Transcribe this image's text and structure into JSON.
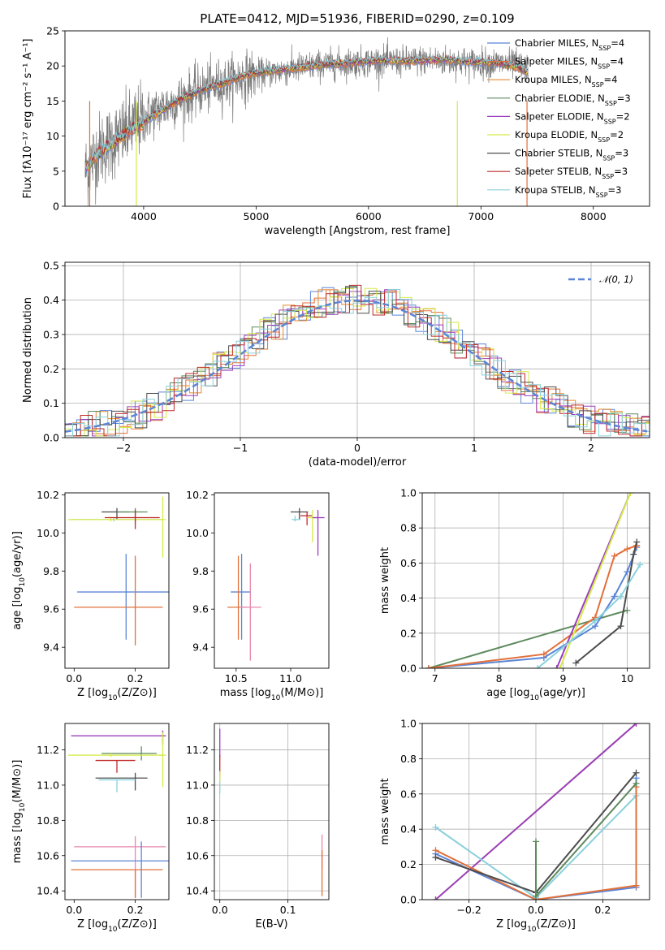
{
  "figure_title": "PLATE=0412, MJD=51936, FIBERID=0290, z=0.109",
  "colors": {
    "chabrier_miles": "#5b85d6",
    "salpeter_miles": "#e2703a",
    "kroupa_miles": "#e88a2e",
    "chabrier_elodie": "#5e8a5e",
    "salpeter_elodie": "#9b3fbf",
    "kroupa_elodie": "#d6ea4a",
    "chabrier_stelib": "#4d4d4d",
    "salpeter_stelib": "#bf2a2a",
    "kroupa_stelib": "#8ad0dc",
    "observed": "#7a7a7a",
    "gaussian": "#5b85d6",
    "pink": "#e887b0",
    "grid": "#b0b0b0"
  },
  "chart_data": [
    {
      "id": "spectrum",
      "type": "line",
      "xlabel": "wavelength [Angstrom, rest frame]",
      "ylabel": "Flux [fλ10⁻¹⁷ erg cm⁻² s⁻¹ A⁻¹]",
      "xlim": [
        3300,
        8500
      ],
      "ylim": [
        0,
        25
      ],
      "xticks": [
        4000,
        5000,
        6000,
        7000,
        8000
      ],
      "yticks": [
        0,
        5,
        10,
        15,
        20,
        25
      ],
      "grid": false,
      "legend_position": "right",
      "legend": [
        {
          "label": "Chabrier MILES, N",
          "sub": "SSP",
          "eq": "=4",
          "color_key": "chabrier_miles"
        },
        {
          "label": "Salpeter MILES, N",
          "sub": "SSP",
          "eq": "=4",
          "color_key": "salpeter_miles"
        },
        {
          "label": "Kroupa MILES, N",
          "sub": "SSP",
          "eq": "=4",
          "color_key": "kroupa_miles"
        },
        {
          "label": "Chabrier ELODIE, N",
          "sub": "SSP",
          "eq": "=3",
          "color_key": "chabrier_elodie"
        },
        {
          "label": "Salpeter ELODIE, N",
          "sub": "SSP",
          "eq": "=2",
          "color_key": "salpeter_elodie"
        },
        {
          "label": "Kroupa ELODIE, N",
          "sub": "SSP",
          "eq": "=2",
          "color_key": "kroupa_elodie"
        },
        {
          "label": "Chabrier STELIB, N",
          "sub": "SSP",
          "eq": "=3",
          "color_key": "chabrier_stelib"
        },
        {
          "label": "Salpeter STELIB, N",
          "sub": "SSP",
          "eq": "=3",
          "color_key": "salpeter_stelib"
        },
        {
          "label": "Kroupa STELIB, N",
          "sub": "SSP",
          "eq": "=3",
          "color_key": "kroupa_stelib"
        }
      ],
      "observed_anchor_points": [
        [
          3480,
          5
        ],
        [
          3600,
          8
        ],
        [
          3800,
          10
        ],
        [
          3950,
          12
        ],
        [
          4100,
          13.5
        ],
        [
          4300,
          15
        ],
        [
          4500,
          16.5
        ],
        [
          4700,
          17.5
        ],
        [
          4900,
          18.5
        ],
        [
          5100,
          19
        ],
        [
          5300,
          19.5
        ],
        [
          5500,
          20
        ],
        [
          5700,
          20.3
        ],
        [
          5900,
          20.5
        ],
        [
          6100,
          20.7
        ],
        [
          6300,
          20.6
        ],
        [
          6500,
          20.8
        ],
        [
          6700,
          20.7
        ],
        [
          6900,
          20.5
        ],
        [
          7100,
          20.4
        ],
        [
          7300,
          20.2
        ],
        [
          7420,
          19.5
        ]
      ],
      "model_anchor_points": [
        [
          3480,
          5.5
        ],
        [
          3600,
          7.5
        ],
        [
          3800,
          10
        ],
        [
          3950,
          11.5
        ],
        [
          4100,
          13
        ],
        [
          4300,
          15
        ],
        [
          4500,
          16.5
        ],
        [
          4700,
          17.5
        ],
        [
          4900,
          18.7
        ],
        [
          5100,
          19.2
        ],
        [
          5300,
          19.6
        ],
        [
          5500,
          20
        ],
        [
          5700,
          20.3
        ],
        [
          5900,
          20.5
        ],
        [
          6100,
          20.8
        ],
        [
          6300,
          20.7
        ],
        [
          6500,
          20.8
        ],
        [
          6700,
          20.9
        ],
        [
          6900,
          20.6
        ],
        [
          7100,
          20.5
        ],
        [
          7300,
          20
        ],
        [
          7420,
          19
        ]
      ]
    },
    {
      "id": "residuals",
      "type": "histogram",
      "xlabel": "(data-model)/error",
      "ylabel": "Normed distribution",
      "xlim": [
        -2.5,
        2.5
      ],
      "ylim": [
        0,
        0.51
      ],
      "xticks": [
        -2,
        -1,
        0,
        1,
        2
      ],
      "yticks": [
        0.0,
        0.1,
        0.2,
        0.3,
        0.4,
        0.5
      ],
      "grid": true,
      "legend_position": "top-right",
      "legend_label": "𝒩(0, 1)",
      "gaussian": {
        "mu": 0,
        "sigma": 1
      }
    },
    {
      "id": "age_vs_Z",
      "type": "errorbar",
      "xlabel_main": "Z [log",
      "xlabel_sub": "10",
      "xlabel_rest": "(Z/Z⊙)]",
      "ylabel_main": "age  [log",
      "ylabel_sub": "10",
      "ylabel_rest": "(age/yr)]",
      "xlim": [
        -0.03,
        0.31
      ],
      "ylim": [
        9.29,
        10.21
      ],
      "xticks": [
        0.0,
        0.2
      ],
      "yticks": [
        9.4,
        9.6,
        9.8,
        10.0,
        10.2
      ],
      "grid": false,
      "points": [
        {
          "x": 0.14,
          "y": 10.11,
          "xerr": [
            0.05,
            0.04
          ],
          "yerr": [
            0.04,
            0.02
          ],
          "color_key": "chabrier_stelib"
        },
        {
          "x": 0.2,
          "y": 10.11,
          "xerr": [
            0.06,
            0.04
          ],
          "yerr": [
            0.06,
            0.02
          ],
          "color_key": "chabrier_elodie"
        },
        {
          "x": 0.13,
          "y": 10.07,
          "xerr": [
            0.14,
            0.16
          ],
          "yerr": [
            0.01,
            0.01
          ],
          "color_key": "kroupa_stelib"
        },
        {
          "x": 0.12,
          "y": 10.07,
          "xerr": [
            0.14,
            0.17
          ],
          "yerr": [
            0.01,
            0.01
          ],
          "color_key": "kroupa_elodie"
        },
        {
          "x": 0.29,
          "y": 10.07,
          "xerr": [
            0.01,
            0.01
          ],
          "yerr": [
            0.2,
            0.12
          ],
          "color_key": "kroupa_elodie"
        },
        {
          "x": 0.2,
          "y": 10.08,
          "xerr": [
            0.1,
            0.08
          ],
          "yerr": [
            0.06,
            0.04
          ],
          "color_key": "salpeter_stelib"
        },
        {
          "x": 0.17,
          "y": 9.69,
          "xerr": [
            0.16,
            0.14
          ],
          "yerr": [
            0.25,
            0.2
          ],
          "color_key": "chabrier_miles"
        },
        {
          "x": 0.2,
          "y": 9.61,
          "xerr": [
            0.2,
            0.09
          ],
          "yerr": [
            0.2,
            0.27
          ],
          "color_key": "salpeter_miles"
        }
      ]
    },
    {
      "id": "age_vs_mass",
      "type": "errorbar",
      "xlabel_main": "mass [log",
      "xlabel_sub": "10",
      "xlabel_rest": "(M/M⊙)]",
      "xlim": [
        10.3,
        11.35
      ],
      "ylim": [
        9.29,
        10.21
      ],
      "xticks": [
        10.5,
        11.0
      ],
      "yticks": [
        9.4,
        9.6,
        9.8,
        10.0,
        10.2
      ],
      "grid": false,
      "points": [
        {
          "x": 11.08,
          "y": 10.11,
          "xerr": [
            0.08,
            0.08
          ],
          "yerr": [
            0.04,
            0.02
          ],
          "color_key": "chabrier_stelib"
        },
        {
          "x": 11.15,
          "y": 10.09,
          "xerr": [
            0.06,
            0.05
          ],
          "yerr": [
            0.05,
            0.02
          ],
          "color_key": "salpeter_stelib"
        },
        {
          "x": 11.2,
          "y": 10.08,
          "xerr": [
            0.05,
            0.05
          ],
          "yerr": [
            0.13,
            0.04
          ],
          "color_key": "kroupa_elodie"
        },
        {
          "x": 11.25,
          "y": 10.08,
          "xerr": [
            0.05,
            0.06
          ],
          "yerr": [
            0.2,
            0.04
          ],
          "color_key": "salpeter_elodie"
        },
        {
          "x": 11.04,
          "y": 10.07,
          "xerr": [
            0.03,
            0.05
          ],
          "yerr": [
            0.01,
            0.02
          ],
          "color_key": "kroupa_stelib"
        },
        {
          "x": 10.55,
          "y": 9.69,
          "xerr": [
            0.1,
            0.08
          ],
          "yerr": [
            0.25,
            0.2
          ],
          "color_key": "chabrier_miles"
        },
        {
          "x": 10.52,
          "y": 9.61,
          "xerr": [
            0.1,
            0.08
          ],
          "yerr": [
            0.17,
            0.27
          ],
          "color_key": "salpeter_miles"
        },
        {
          "x": 10.63,
          "y": 9.61,
          "xerr": [
            0.1,
            0.1
          ],
          "yerr": [
            0.28,
            0.23
          ],
          "color_key": "pink"
        }
      ]
    },
    {
      "id": "mass_weight_vs_age",
      "type": "line",
      "xlabel_main": "age  [log",
      "xlabel_sub": "10",
      "xlabel_rest": "(age/yr)]",
      "ylabel": "mass weight",
      "xlim": [
        6.8,
        10.35
      ],
      "ylim": [
        0,
        1
      ],
      "xticks": [
        7,
        8,
        9,
        10
      ],
      "yticks": [
        0.0,
        0.2,
        0.4,
        0.6,
        0.8,
        1.0
      ],
      "grid": true,
      "series": [
        {
          "color_key": "chabrier_elodie",
          "x": [
            6.9,
            10.0
          ],
          "y": [
            0.0,
            0.33
          ]
        },
        {
          "color_key": "chabrier_miles",
          "x": [
            6.9,
            8.7,
            9.5,
            9.8,
            10.0,
            10.15
          ],
          "y": [
            0.0,
            0.06,
            0.24,
            0.41,
            0.55,
            0.69
          ]
        },
        {
          "color_key": "salpeter_miles",
          "x": [
            6.9,
            8.7,
            9.5,
            9.8,
            10.0,
            10.15
          ],
          "y": [
            0.0,
            0.08,
            0.29,
            0.64,
            0.68,
            0.7
          ]
        },
        {
          "color_key": "salpeter_elodie",
          "x": [
            8.9,
            10.05
          ],
          "y": [
            0.0,
            1.0
          ]
        },
        {
          "color_key": "kroupa_elodie",
          "x": [
            8.95,
            10.05
          ],
          "y": [
            0.0,
            1.0
          ]
        },
        {
          "color_key": "chabrier_stelib",
          "x": [
            9.2,
            9.9,
            10.1,
            10.15
          ],
          "y": [
            0.03,
            0.24,
            0.65,
            0.72
          ]
        },
        {
          "color_key": "kroupa_stelib",
          "x": [
            8.6,
            9.5,
            9.9,
            10.2
          ],
          "y": [
            0.0,
            0.27,
            0.41,
            0.59
          ]
        }
      ]
    },
    {
      "id": "mass_vs_Z",
      "type": "errorbar",
      "xlabel_main": "Z [log",
      "xlabel_sub": "10",
      "xlabel_rest": "(Z/Z⊙)]",
      "ylabel_main": "mass [log",
      "ylabel_sub": "10",
      "ylabel_rest": "(M/M⊙)]",
      "xlim": [
        -0.03,
        0.31
      ],
      "ylim": [
        10.35,
        11.35
      ],
      "xticks": [
        0.0,
        0.2
      ],
      "yticks": [
        10.4,
        10.6,
        10.8,
        11.0,
        11.2
      ],
      "grid": false,
      "points": [
        {
          "x": 0.29,
          "y": 11.28,
          "xerr": [
            0.3,
            0.01
          ],
          "yerr": [
            0.05,
            0.03
          ],
          "color_key": "salpeter_elodie"
        },
        {
          "x": 0.22,
          "y": 11.18,
          "xerr": [
            0.13,
            0.05
          ],
          "yerr": [
            0.04,
            0.04
          ],
          "color_key": "chabrier_elodie"
        },
        {
          "x": 0.12,
          "y": 11.17,
          "xerr": [
            0.14,
            0.17
          ],
          "yerr": [
            0.01,
            0.01
          ],
          "color_key": "kroupa_elodie"
        },
        {
          "x": 0.29,
          "y": 11.17,
          "xerr": [
            0.01,
            0.01
          ],
          "yerr": [
            0.18,
            0.13
          ],
          "color_key": "kroupa_elodie"
        },
        {
          "x": 0.14,
          "y": 11.14,
          "xerr": [
            0.07,
            0.06
          ],
          "yerr": [
            0.07,
            0.0
          ],
          "color_key": "salpeter_stelib"
        },
        {
          "x": 0.2,
          "y": 11.04,
          "xerr": [
            0.13,
            0.04
          ],
          "yerr": [
            0.07,
            0.03
          ],
          "color_key": "chabrier_stelib"
        },
        {
          "x": 0.14,
          "y": 11.03,
          "xerr": [
            0.06,
            0.06
          ],
          "yerr": [
            0.07,
            0.0
          ],
          "color_key": "kroupa_stelib"
        },
        {
          "x": 0.2,
          "y": 10.65,
          "xerr": [
            0.2,
            0.1
          ],
          "yerr": [
            0.29,
            0.06
          ],
          "color_key": "pink"
        },
        {
          "x": 0.22,
          "y": 10.57,
          "xerr": [
            0.23,
            0.09
          ],
          "yerr": [
            0.21,
            0.11
          ],
          "color_key": "chabrier_miles"
        },
        {
          "x": 0.2,
          "y": 10.52,
          "xerr": [
            0.21,
            0.09
          ],
          "yerr": [
            0.16,
            0.0
          ],
          "color_key": "salpeter_miles"
        }
      ]
    },
    {
      "id": "mass_vs_ebv",
      "type": "errorbar",
      "xlabel": "E(B-V)",
      "xlim": [
        -0.008,
        0.16
      ],
      "ylim": [
        10.35,
        11.35
      ],
      "xticks": [
        0.0,
        0.1
      ],
      "yticks": [
        10.4,
        10.6,
        10.8,
        11.0,
        11.2
      ],
      "grid": true,
      "points": [
        {
          "x": 0.0,
          "y": 11.24,
          "xerr": [
            0,
            0
          ],
          "yerr": [
            0.08,
            0.08
          ],
          "color_key": "salpeter_elodie"
        },
        {
          "x": 0.0,
          "y": 11.1,
          "xerr": [
            0,
            0
          ],
          "yerr": [
            0.07,
            0.07
          ],
          "color_key": "salpeter_stelib"
        },
        {
          "x": 0.0,
          "y": 11.0,
          "xerr": [
            0,
            0
          ],
          "yerr": [
            0.05,
            0.05
          ],
          "color_key": "kroupa_stelib"
        },
        {
          "x": 0.0,
          "y": 11.05,
          "xerr": [
            0,
            0
          ],
          "yerr": [
            0.03,
            0.03
          ],
          "color_key": "kroupa_elodie"
        },
        {
          "x": 0.15,
          "y": 10.62,
          "xerr": [
            0,
            0
          ],
          "yerr": [
            0.1,
            0.1
          ],
          "color_key": "pink"
        },
        {
          "x": 0.15,
          "y": 10.5,
          "xerr": [
            0,
            0
          ],
          "yerr": [
            0.13,
            0.13
          ],
          "color_key": "salpeter_miles"
        }
      ]
    },
    {
      "id": "mass_weight_vs_Z",
      "type": "line",
      "xlabel_main": "Z [log",
      "xlabel_sub": "10",
      "xlabel_rest": "(Z/Z⊙)]",
      "ylabel": "mass weight",
      "xlim": [
        -0.34,
        0.34
      ],
      "ylim": [
        0,
        1
      ],
      "xticks": [
        -0.2,
        0.0,
        0.2
      ],
      "yticks": [
        0.0,
        0.2,
        0.4,
        0.6,
        0.8,
        1.0
      ],
      "grid": true,
      "series": [
        {
          "color_key": "kroupa_elodie",
          "x": [
            -0.3,
            0.3
          ],
          "y": [
            0.0,
            1.0
          ]
        },
        {
          "color_key": "salpeter_elodie",
          "x": [
            -0.3,
            0.3
          ],
          "y": [
            0.0,
            1.0
          ]
        },
        {
          "color_key": "kroupa_stelib",
          "x": [
            -0.3,
            0.0,
            0.3
          ],
          "y": [
            0.41,
            0.01,
            0.59
          ]
        },
        {
          "color_key": "chabrier_miles",
          "x": [
            -0.3,
            0.0,
            0.3,
            0.3
          ],
          "y": [
            0.26,
            0.0,
            0.07,
            0.69
          ]
        },
        {
          "color_key": "salpeter_miles",
          "x": [
            -0.3,
            0.0,
            0.3,
            0.3
          ],
          "y": [
            0.28,
            0.0,
            0.08,
            0.64
          ]
        },
        {
          "color_key": "chabrier_stelib",
          "x": [
            -0.3,
            0.0,
            0.3
          ],
          "y": [
            0.24,
            0.04,
            0.72
          ]
        },
        {
          "color_key": "chabrier_elodie",
          "x": [
            0.0,
            0.0,
            0.3
          ],
          "y": [
            0.33,
            0.02,
            0.66
          ]
        }
      ]
    }
  ]
}
